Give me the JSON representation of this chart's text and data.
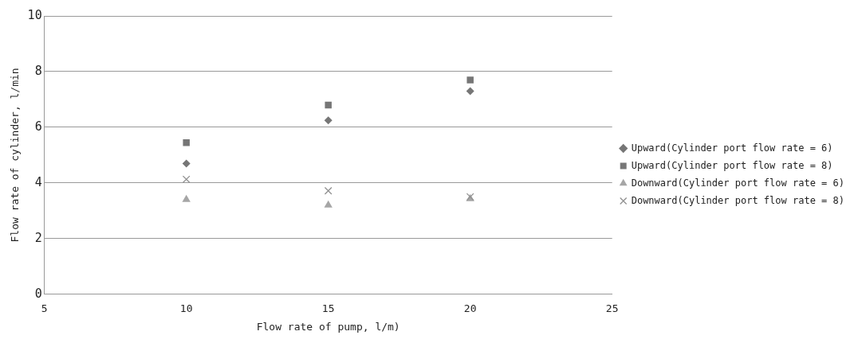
{
  "chart_data": {
    "type": "scatter",
    "xlabel": "Flow rate of pump, l/m)",
    "ylabel": "Flow rate of cylinder, l/min",
    "xlim": [
      5,
      25
    ],
    "xticks": [
      5,
      10,
      15,
      20,
      25
    ],
    "ylim": [
      0,
      10
    ],
    "yticks": [
      0,
      2,
      4,
      6,
      8,
      10
    ],
    "grid": "y",
    "legend": "right",
    "x": [
      10,
      15,
      20
    ],
    "series": [
      {
        "name": "Upward(Cylinder port flow rate = 6)",
        "color": "#767676",
        "marker": "diamond",
        "values": [
          4.7,
          6.25,
          7.3
        ]
      },
      {
        "name": "Upward(Cylinder port flow rate = 8)",
        "color": "#767676",
        "marker": "square",
        "values": [
          5.45,
          6.8,
          7.7
        ]
      },
      {
        "name": "Downward(Cylinder port flow rate = 6)",
        "color": "#a6a6a6",
        "marker": "triangle",
        "values": [
          3.4,
          3.2,
          3.43
        ]
      },
      {
        "name": "Downward(Cylinder port flow rate = 8)",
        "color": "#909090",
        "marker": "cross",
        "values": [
          4.13,
          3.72,
          3.5
        ]
      }
    ]
  }
}
